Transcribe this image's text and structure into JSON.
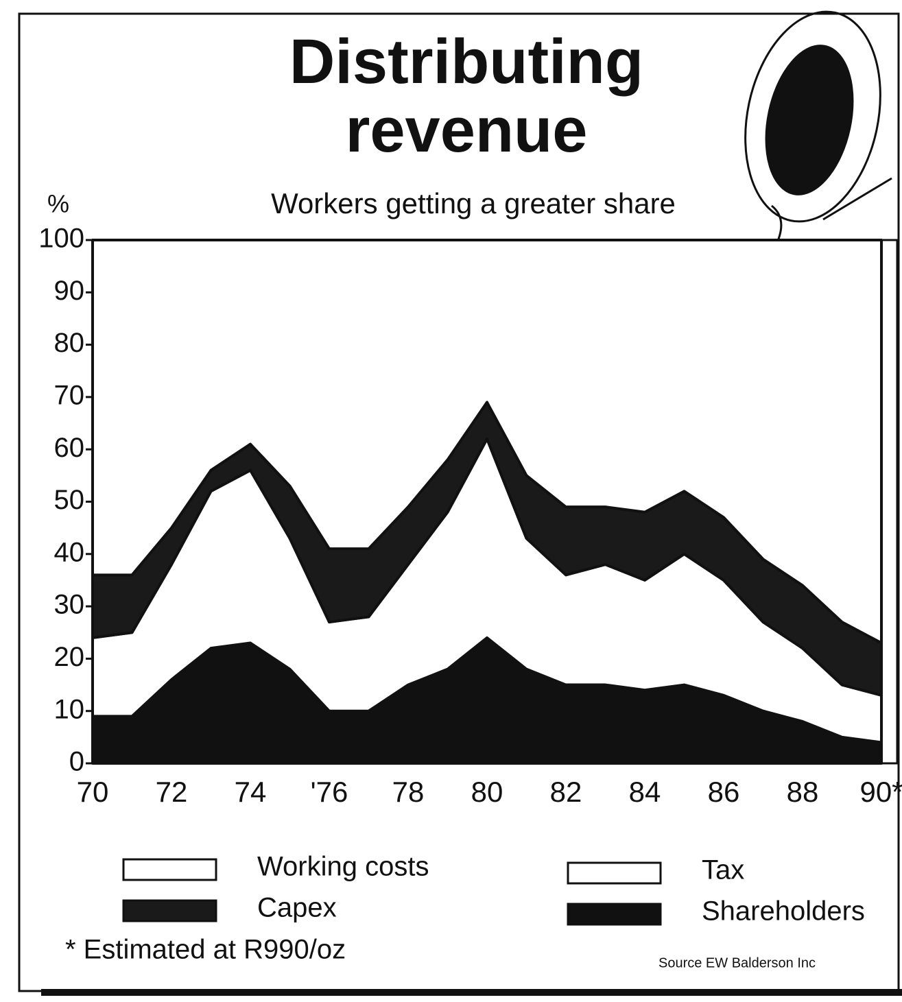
{
  "chart_data": {
    "type": "stacked_area",
    "title": "Distributing revenue",
    "subtitle": "Workers getting a greater share",
    "y_label": "%",
    "x": [
      70,
      71,
      72,
      73,
      74,
      75,
      76,
      77,
      78,
      79,
      80,
      81,
      82,
      83,
      84,
      85,
      86,
      87,
      88,
      89,
      90
    ],
    "series": [
      {
        "name": "Shareholders",
        "color": "#111111",
        "values": [
          9,
          9,
          16,
          22,
          23,
          18,
          10,
          10,
          15,
          18,
          24,
          18,
          15,
          15,
          14,
          15,
          13,
          10,
          8,
          5,
          4
        ]
      },
      {
        "name": "Tax",
        "color": "#ffffff",
        "values": [
          15,
          16,
          22,
          30,
          33,
          25,
          17,
          18,
          23,
          30,
          38,
          25,
          21,
          23,
          21,
          25,
          22,
          17,
          14,
          10,
          9
        ]
      },
      {
        "name": "Capex",
        "color": "#1a1a1a",
        "values": [
          12,
          11,
          7,
          4,
          5,
          10,
          14,
          13,
          11,
          10,
          7,
          12,
          13,
          11,
          13,
          12,
          12,
          12,
          12,
          12,
          10
        ]
      },
      {
        "name": "Working costs",
        "color": "#ffffff",
        "values": [
          64,
          64,
          55,
          44,
          39,
          47,
          59,
          59,
          51,
          42,
          31,
          45,
          51,
          51,
          52,
          48,
          53,
          61,
          66,
          73,
          77
        ]
      }
    ],
    "xlim": [
      70,
      90.4
    ],
    "xticks": [
      70,
      72,
      74,
      {
        "value": 76,
        "label": "'76"
      },
      78,
      80,
      82,
      84,
      86,
      88,
      {
        "value": 90,
        "label": "90*"
      }
    ],
    "xminor_ticks": [
      71,
      73,
      75,
      77,
      79,
      81,
      83,
      85,
      87,
      89
    ],
    "ylim": [
      0,
      100
    ],
    "yticks": [
      0,
      10,
      20,
      30,
      40,
      50,
      60,
      70,
      80,
      90,
      100
    ],
    "footnote": "* Estimated at R990/oz",
    "source": "Source EW Balderson Inc"
  }
}
